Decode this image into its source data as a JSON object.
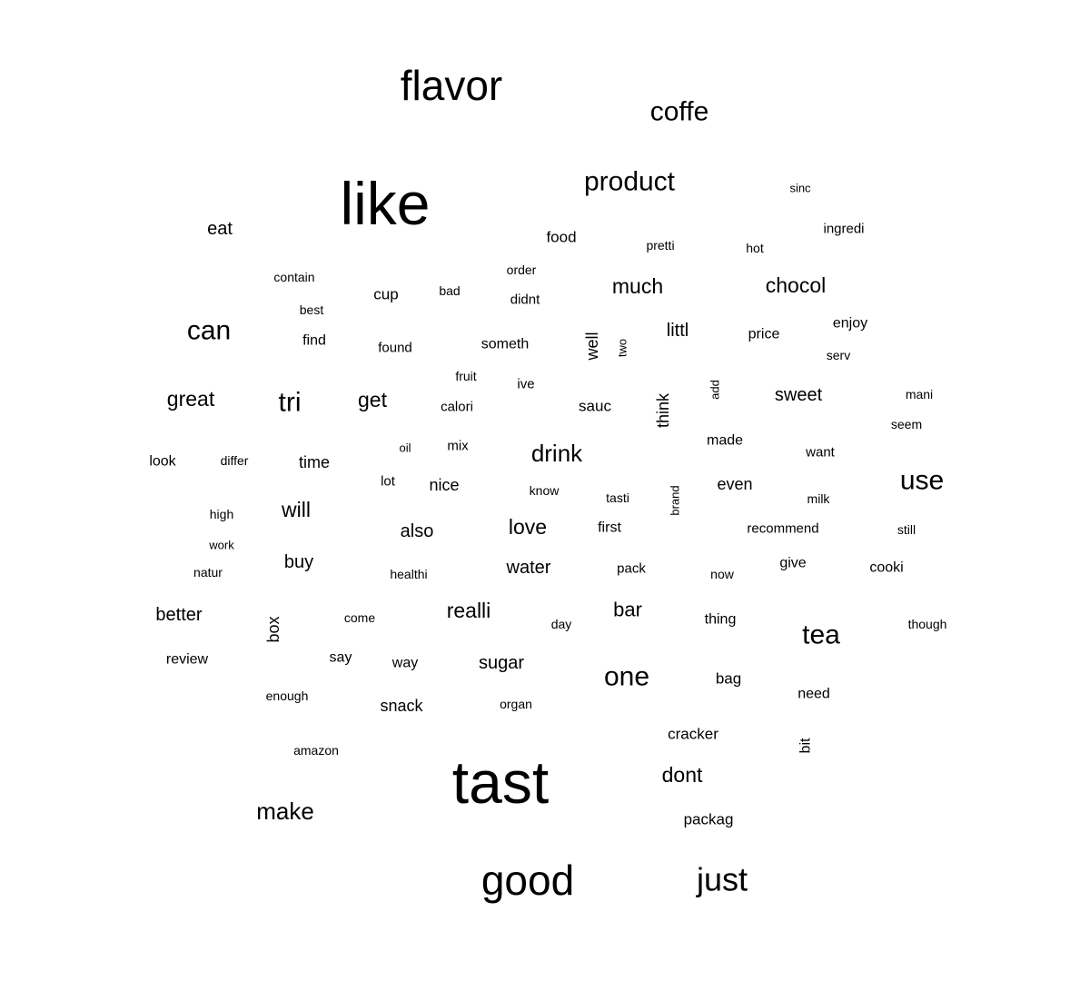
{
  "chart_data": {
    "type": "wordcloud",
    "color": "#000000",
    "words": [
      {
        "text": "tast",
        "size": 5,
        "rotated": false
      },
      {
        "text": "like",
        "size": 5,
        "rotated": false
      },
      {
        "text": "flavor",
        "size": 4,
        "rotated": false
      },
      {
        "text": "good",
        "size": 4,
        "rotated": false
      },
      {
        "text": "just",
        "size": 3.5,
        "rotated": false
      },
      {
        "text": "product",
        "size": 3,
        "rotated": false
      },
      {
        "text": "coffe",
        "size": 3,
        "rotated": false
      },
      {
        "text": "use",
        "size": 3,
        "rotated": false
      },
      {
        "text": "tea",
        "size": 3,
        "rotated": false
      },
      {
        "text": "one",
        "size": 3,
        "rotated": false
      },
      {
        "text": "can",
        "size": 3,
        "rotated": false
      },
      {
        "text": "tri",
        "size": 3,
        "rotated": false
      },
      {
        "text": "make",
        "size": 2.5,
        "rotated": false
      },
      {
        "text": "drink",
        "size": 2.5,
        "rotated": false
      },
      {
        "text": "much",
        "size": 2.2,
        "rotated": false
      },
      {
        "text": "chocol",
        "size": 2.2,
        "rotated": false
      },
      {
        "text": "get",
        "size": 2.2,
        "rotated": false
      },
      {
        "text": "great",
        "size": 2.2,
        "rotated": false
      },
      {
        "text": "will",
        "size": 2.2,
        "rotated": false
      },
      {
        "text": "realli",
        "size": 2.2,
        "rotated": false
      },
      {
        "text": "love",
        "size": 2.2,
        "rotated": false
      },
      {
        "text": "dont",
        "size": 2.2,
        "rotated": false
      },
      {
        "text": "bar",
        "size": 2,
        "rotated": false
      },
      {
        "text": "water",
        "size": 1.8,
        "rotated": false
      },
      {
        "text": "sweet",
        "size": 1.8,
        "rotated": false
      },
      {
        "text": "littl",
        "size": 1.8,
        "rotated": false
      },
      {
        "text": "buy",
        "size": 1.8,
        "rotated": false
      },
      {
        "text": "better",
        "size": 1.8,
        "rotated": false
      },
      {
        "text": "also",
        "size": 1.8,
        "rotated": false
      },
      {
        "text": "sugar",
        "size": 1.8,
        "rotated": false
      },
      {
        "text": "eat",
        "size": 1.8,
        "rotated": false
      },
      {
        "text": "well",
        "size": 1.6,
        "rotated": true
      },
      {
        "text": "think",
        "size": 1.6,
        "rotated": true
      },
      {
        "text": "box",
        "size": 1.6,
        "rotated": true
      },
      {
        "text": "time",
        "size": 1.6,
        "rotated": false
      },
      {
        "text": "nice",
        "size": 1.6,
        "rotated": false
      },
      {
        "text": "even",
        "size": 1.6,
        "rotated": false
      },
      {
        "text": "snack",
        "size": 1.6,
        "rotated": false
      },
      {
        "text": "cracker",
        "size": 1.5,
        "rotated": false
      },
      {
        "text": "bag",
        "size": 1.5,
        "rotated": false
      },
      {
        "text": "sauc",
        "size": 1.5,
        "rotated": false
      },
      {
        "text": "cup",
        "size": 1.5,
        "rotated": false
      },
      {
        "text": "food",
        "size": 1.5,
        "rotated": false
      },
      {
        "text": "packag",
        "size": 1.5,
        "rotated": false
      },
      {
        "text": "bit",
        "size": 1.4,
        "rotated": true
      },
      {
        "text": "price",
        "size": 1.4,
        "rotated": false
      },
      {
        "text": "first",
        "size": 1.4,
        "rotated": false
      },
      {
        "text": "something",
        "size": 1.4,
        "rotated": false
      },
      {
        "text": "need",
        "size": 1.4,
        "rotated": false
      },
      {
        "text": "find",
        "size": 1.4,
        "rotated": false
      },
      {
        "text": "cooki",
        "size": 1.4,
        "rotated": false
      },
      {
        "text": "made",
        "size": 1.4,
        "rotated": false
      },
      {
        "text": "give",
        "size": 1.4,
        "rotated": false
      },
      {
        "text": "thing",
        "size": 1.4,
        "rotated": false
      },
      {
        "text": "look",
        "size": 1.4,
        "rotated": false
      },
      {
        "text": "review",
        "size": 1.4,
        "rotated": false
      },
      {
        "text": "enjoy",
        "size": 1.4,
        "rotated": false
      },
      {
        "text": "way",
        "size": 1.4,
        "rotated": false
      },
      {
        "text": "say",
        "size": 1.4,
        "rotated": false
      },
      {
        "text": "want",
        "size": 1.3,
        "rotated": false
      },
      {
        "text": "ingredi",
        "size": 1.3,
        "rotated": false
      },
      {
        "text": "didnt",
        "size": 1.3,
        "rotated": false
      },
      {
        "text": "recommend",
        "size": 1.3,
        "rotated": false
      },
      {
        "text": "found",
        "size": 1.3,
        "rotated": false
      },
      {
        "text": "mix",
        "size": 1.3,
        "rotated": false
      },
      {
        "text": "ive",
        "size": 1.3,
        "rotated": false
      },
      {
        "text": "calori",
        "size": 1.3,
        "rotated": false
      },
      {
        "text": "lot",
        "size": 1.3,
        "rotated": false
      },
      {
        "text": "pack",
        "size": 1.3,
        "rotated": false
      },
      {
        "text": "tasti",
        "size": 1.2,
        "rotated": false
      },
      {
        "text": "know",
        "size": 1.2,
        "rotated": false
      },
      {
        "text": "milk",
        "size": 1.2,
        "rotated": false
      },
      {
        "text": "still",
        "size": 1.2,
        "rotated": false
      },
      {
        "text": "contain",
        "size": 1.2,
        "rotated": false
      },
      {
        "text": "best",
        "size": 1.2,
        "rotated": false
      },
      {
        "text": "hot",
        "size": 1.2,
        "rotated": false
      },
      {
        "text": "pretti",
        "size": 1.2,
        "rotated": false
      },
      {
        "text": "order",
        "size": 1.2,
        "rotated": false
      },
      {
        "text": "bad",
        "size": 1.2,
        "rotated": false
      },
      {
        "text": "fruit",
        "size": 1.2,
        "rotated": false
      },
      {
        "text": "differ",
        "size": 1.2,
        "rotated": false
      },
      {
        "text": "high",
        "size": 1.2,
        "rotated": false
      },
      {
        "text": "come",
        "size": 1.2,
        "rotated": false
      },
      {
        "text": "enough",
        "size": 1.2,
        "rotated": false
      },
      {
        "text": "organ",
        "size": 1.2,
        "rotated": false
      },
      {
        "text": "day",
        "size": 1.2,
        "rotated": false
      },
      {
        "text": "now",
        "size": 1.2,
        "rotated": false
      },
      {
        "text": "healthi",
        "size": 1.2,
        "rotated": false
      },
      {
        "text": "mani",
        "size": 1.2,
        "rotated": false
      },
      {
        "text": "seem",
        "size": 1.2,
        "rotated": false
      },
      {
        "text": "serv",
        "size": 1.2,
        "rotated": false
      },
      {
        "text": "though",
        "size": 1.2,
        "rotated": false
      },
      {
        "text": "amazon",
        "size": 1.2,
        "rotated": false
      },
      {
        "text": "oil",
        "size": 1.1,
        "rotated": false
      },
      {
        "text": "work",
        "size": 1.1,
        "rotated": false
      },
      {
        "text": "natur",
        "size": 1.2,
        "rotated": false
      },
      {
        "text": "sinc",
        "size": 1.1,
        "rotated": false
      },
      {
        "text": "two",
        "size": 1.1,
        "rotated": true
      },
      {
        "text": "add",
        "size": 1.1,
        "rotated": true
      },
      {
        "text": "brand",
        "size": 1.1,
        "rotated": true
      }
    ]
  }
}
